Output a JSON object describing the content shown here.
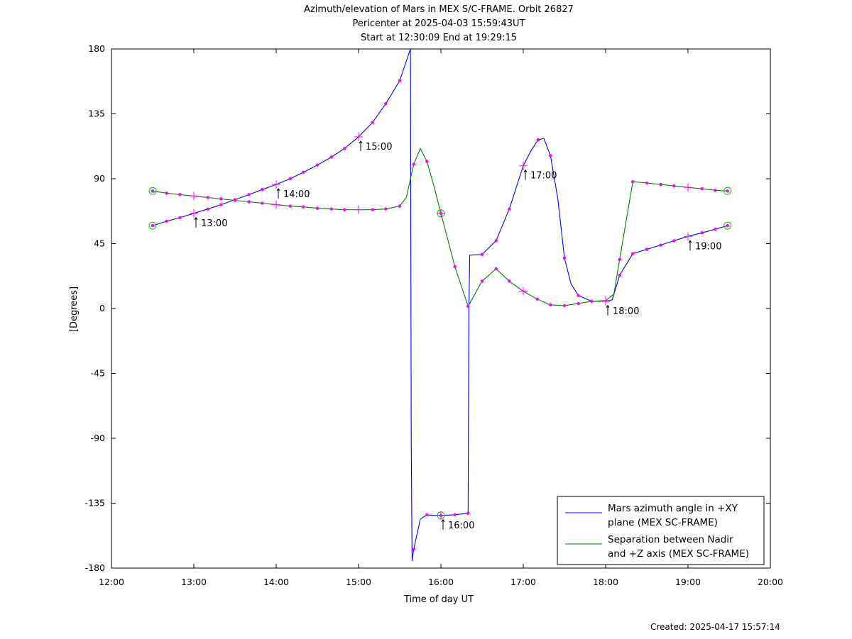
{
  "chart_data": {
    "type": "line",
    "title": "Azimuth/elevation of Mars in MEX S/C-FRAME.  Orbit 26827",
    "subtitle_lines": [
      "Pericenter at 2025-04-03 15:59:43UT",
      "Start at 12:30:09 End at 19:29:15"
    ],
    "xlabel": "Time of day UT",
    "ylabel": "[Degrees]",
    "x_unit": "hours of day UT",
    "xlim": [
      12,
      20
    ],
    "ylim": [
      -180,
      180
    ],
    "x_ticks": [
      {
        "value": 12,
        "label": "12:00"
      },
      {
        "value": 13,
        "label": "13:00"
      },
      {
        "value": 14,
        "label": "14:00"
      },
      {
        "value": 15,
        "label": "15:00"
      },
      {
        "value": 16,
        "label": "16:00"
      },
      {
        "value": 17,
        "label": "17:00"
      },
      {
        "value": 18,
        "label": "18:00"
      },
      {
        "value": 19,
        "label": "19:00"
      },
      {
        "value": 20,
        "label": "20:00"
      }
    ],
    "y_ticks": [
      {
        "value": 180,
        "label": "180"
      },
      {
        "value": 135,
        "label": "135"
      },
      {
        "value": 90,
        "label": "90"
      },
      {
        "value": 45,
        "label": "45"
      },
      {
        "value": 0,
        "label": "0"
      },
      {
        "value": -45,
        "label": "-45"
      },
      {
        "value": -90,
        "label": "-90"
      },
      {
        "value": -135,
        "label": "-135"
      },
      {
        "value": -180,
        "label": "-180"
      }
    ],
    "grid": false,
    "legend_position": "bottom-right",
    "series": [
      {
        "name": "Mars azimuth angle in +XY plane (MEX SC-FRAME)",
        "legend_lines": [
          "Mars azimuth angle in +XY",
          "plane (MEX SC-FRAME)"
        ],
        "color": "#0000ff",
        "points": [
          [
            12.5,
            57.5
          ],
          [
            12.67,
            60.5
          ],
          [
            12.83,
            63
          ],
          [
            13.0,
            66
          ],
          [
            13.17,
            69
          ],
          [
            13.33,
            72
          ],
          [
            13.5,
            75.5
          ],
          [
            13.67,
            79
          ],
          [
            13.83,
            82.5
          ],
          [
            14.0,
            86
          ],
          [
            14.17,
            90
          ],
          [
            14.33,
            94.5
          ],
          [
            14.5,
            99.5
          ],
          [
            14.67,
            105
          ],
          [
            14.83,
            111
          ],
          [
            15.0,
            119
          ],
          [
            15.17,
            129
          ],
          [
            15.33,
            142
          ],
          [
            15.5,
            158
          ],
          [
            15.63,
            180
          ],
          [
            15.64,
            -90
          ],
          [
            15.65,
            -175
          ],
          [
            15.67,
            -167
          ],
          [
            15.75,
            -146
          ],
          [
            15.83,
            -143
          ],
          [
            15.92,
            -143.5
          ],
          [
            16.0,
            -143.5
          ],
          [
            16.17,
            -143
          ],
          [
            16.33,
            -142
          ],
          [
            16.34,
            0
          ],
          [
            16.35,
            37
          ],
          [
            16.5,
            37.5
          ],
          [
            16.67,
            47
          ],
          [
            16.83,
            69
          ],
          [
            17.0,
            99
          ],
          [
            17.1,
            110
          ],
          [
            17.18,
            117
          ],
          [
            17.25,
            118
          ],
          [
            17.33,
            106
          ],
          [
            17.42,
            76
          ],
          [
            17.5,
            35
          ],
          [
            17.58,
            17
          ],
          [
            17.67,
            9
          ],
          [
            17.83,
            5
          ],
          [
            18.0,
            5
          ],
          [
            18.08,
            6
          ],
          [
            18.17,
            23
          ],
          [
            18.33,
            38
          ],
          [
            18.5,
            41
          ],
          [
            18.67,
            44
          ],
          [
            18.83,
            47
          ],
          [
            19.0,
            50
          ],
          [
            19.17,
            52.5
          ],
          [
            19.33,
            55
          ],
          [
            19.48,
            57.5
          ]
        ],
        "markers": [
          [
            12.67,
            60.5
          ],
          [
            12.83,
            63
          ],
          [
            13.17,
            69
          ],
          [
            13.33,
            72
          ],
          [
            13.5,
            75.5
          ],
          [
            13.67,
            79
          ],
          [
            13.83,
            82.5
          ],
          [
            14.17,
            90
          ],
          [
            14.33,
            94.5
          ],
          [
            14.5,
            99.5
          ],
          [
            14.67,
            105
          ],
          [
            14.83,
            111
          ],
          [
            15.17,
            129
          ],
          [
            15.33,
            142
          ],
          [
            15.5,
            158
          ],
          [
            15.67,
            -167
          ],
          [
            15.83,
            -143
          ],
          [
            16.17,
            -143
          ],
          [
            16.33,
            -142
          ],
          [
            16.5,
            37.5
          ],
          [
            16.67,
            47
          ],
          [
            16.83,
            69
          ],
          [
            17.18,
            117
          ],
          [
            17.33,
            106
          ],
          [
            17.5,
            35
          ],
          [
            17.67,
            9
          ],
          [
            17.83,
            5
          ],
          [
            18.17,
            23
          ],
          [
            18.33,
            38
          ],
          [
            18.5,
            41
          ],
          [
            18.67,
            44
          ],
          [
            18.83,
            47
          ],
          [
            19.17,
            52.5
          ],
          [
            19.33,
            55
          ]
        ],
        "hour_marks": [
          [
            13.0,
            66
          ],
          [
            14.0,
            86
          ],
          [
            15.0,
            119
          ],
          [
            16.0,
            -143.5
          ],
          [
            17.0,
            99
          ],
          [
            18.0,
            5
          ],
          [
            19.0,
            50
          ]
        ],
        "endpoint_circles": [
          [
            12.5,
            57.5
          ],
          [
            19.48,
            57.5
          ],
          [
            16.0,
            -143.5
          ]
        ]
      },
      {
        "name": "Separation between Nadir and +Z axis (MEX SC-FRAME)",
        "legend_lines": [
          "Separation between Nadir",
          "and +Z axis (MEX SC-FRAME)"
        ],
        "color": "#008000",
        "points": [
          [
            12.5,
            81.5
          ],
          [
            12.67,
            80
          ],
          [
            12.83,
            79
          ],
          [
            13.0,
            78
          ],
          [
            13.17,
            77
          ],
          [
            13.33,
            76
          ],
          [
            13.5,
            75
          ],
          [
            13.67,
            74
          ],
          [
            13.83,
            73
          ],
          [
            14.0,
            72
          ],
          [
            14.17,
            71
          ],
          [
            14.33,
            70.5
          ],
          [
            14.5,
            69.5
          ],
          [
            14.67,
            69
          ],
          [
            14.83,
            68.5
          ],
          [
            15.0,
            68.5
          ],
          [
            15.17,
            68.5
          ],
          [
            15.33,
            69
          ],
          [
            15.5,
            71
          ],
          [
            15.58,
            77
          ],
          [
            15.67,
            100
          ],
          [
            15.75,
            111
          ],
          [
            15.83,
            102
          ],
          [
            15.92,
            84
          ],
          [
            16.0,
            66
          ],
          [
            16.17,
            29
          ],
          [
            16.33,
            1.5
          ],
          [
            16.5,
            19
          ],
          [
            16.67,
            27.5
          ],
          [
            16.83,
            19
          ],
          [
            17.0,
            12
          ],
          [
            17.17,
            6.5
          ],
          [
            17.33,
            2.5
          ],
          [
            17.5,
            2
          ],
          [
            17.67,
            3.5
          ],
          [
            17.83,
            5
          ],
          [
            18.0,
            5.5
          ],
          [
            18.1,
            10
          ],
          [
            18.17,
            34
          ],
          [
            18.33,
            88
          ],
          [
            18.5,
            87
          ],
          [
            18.67,
            86
          ],
          [
            18.83,
            85
          ],
          [
            19.0,
            84
          ],
          [
            19.17,
            83
          ],
          [
            19.33,
            82
          ],
          [
            19.48,
            81.5
          ]
        ],
        "markers": [
          [
            12.67,
            80
          ],
          [
            12.83,
            79
          ],
          [
            13.17,
            77
          ],
          [
            13.33,
            76
          ],
          [
            13.5,
            75
          ],
          [
            13.67,
            74
          ],
          [
            13.83,
            73
          ],
          [
            14.17,
            71
          ],
          [
            14.33,
            70.5
          ],
          [
            14.5,
            69.5
          ],
          [
            14.67,
            69
          ],
          [
            14.83,
            68.5
          ],
          [
            15.17,
            68.5
          ],
          [
            15.33,
            69
          ],
          [
            15.5,
            71
          ],
          [
            15.67,
            100
          ],
          [
            15.83,
            102
          ],
          [
            16.17,
            29
          ],
          [
            16.33,
            1.5
          ],
          [
            16.5,
            19
          ],
          [
            16.67,
            27.5
          ],
          [
            16.83,
            19
          ],
          [
            17.17,
            6.5
          ],
          [
            17.33,
            2.5
          ],
          [
            17.5,
            2
          ],
          [
            17.67,
            3.5
          ],
          [
            17.83,
            5
          ],
          [
            18.17,
            34
          ],
          [
            18.33,
            88
          ],
          [
            18.5,
            87
          ],
          [
            18.67,
            86
          ],
          [
            18.83,
            85
          ],
          [
            19.17,
            83
          ],
          [
            19.33,
            82
          ]
        ],
        "hour_marks": [
          [
            13.0,
            78
          ],
          [
            14.0,
            72
          ],
          [
            15.0,
            68.5
          ],
          [
            16.0,
            66
          ],
          [
            17.0,
            12
          ],
          [
            18.0,
            5.5
          ],
          [
            19.0,
            84
          ]
        ],
        "endpoint_circles": [
          [
            12.5,
            81.5
          ],
          [
            19.48,
            81.5
          ],
          [
            16.0,
            66
          ]
        ]
      }
    ],
    "time_annotations": [
      {
        "label": "13:00",
        "x": 13.0,
        "y": 66
      },
      {
        "label": "14:00",
        "x": 14.0,
        "y": 86
      },
      {
        "label": "15:00",
        "x": 15.0,
        "y": 119
      },
      {
        "label": "16:00",
        "x": 16.0,
        "y": -143.5
      },
      {
        "label": "17:00",
        "x": 17.0,
        "y": 99
      },
      {
        "label": "18:00",
        "x": 18.0,
        "y": 5
      },
      {
        "label": "19:00",
        "x": 19.0,
        "y": 50
      }
    ],
    "marker_color": "#ff00ff",
    "circle_color": "#00cc00"
  },
  "footer": {
    "created": "Created: 2025-04-17 15:57:14"
  }
}
